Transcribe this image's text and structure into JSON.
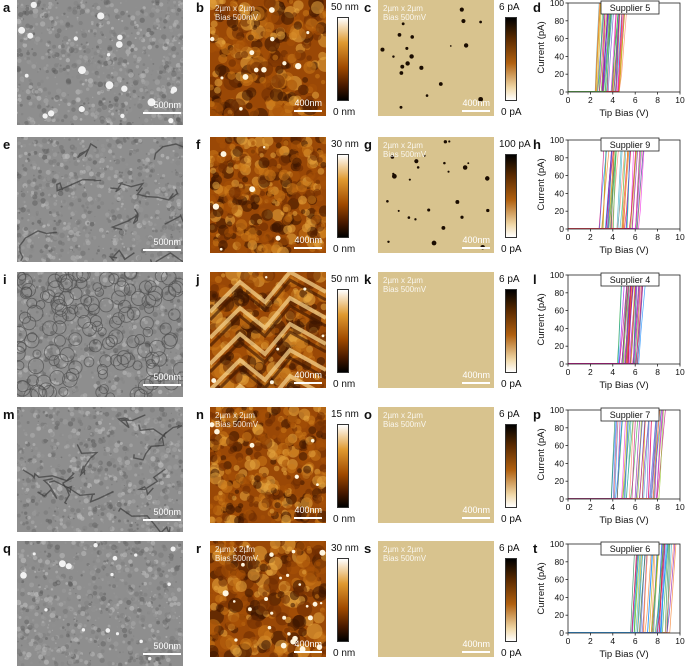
{
  "overlay": {
    "size": "2µm x 2µm",
    "bias": "Bias 500mV"
  },
  "scale": {
    "sem": "500nm",
    "afm": "400nm"
  },
  "rows": [
    {
      "labels": [
        "a",
        "b",
        "c",
        "d"
      ],
      "height_max": "50 nm",
      "height_min": "0 nm",
      "current_max": "6 pA",
      "current_min": "0 pA",
      "supplier": "Supplier 5",
      "sem_style": "grainy",
      "afm_style": "smooth",
      "current_style": "spots",
      "curve_range": [
        2.4,
        4.6
      ]
    },
    {
      "labels": [
        "e",
        "f",
        "g",
        "h"
      ],
      "height_max": "30 nm",
      "height_min": "0 nm",
      "current_max": "100 pA",
      "current_min": "0 pA",
      "supplier": "Supplier 9",
      "sem_style": "cracks",
      "afm_style": "grains",
      "current_style": "spots",
      "curve_range": [
        2.6,
        6.4
      ]
    },
    {
      "labels": [
        "i",
        "j",
        "k",
        "l"
      ],
      "height_max": "50 nm",
      "height_min": "0 nm",
      "current_max": "6 pA",
      "current_min": "0 pA",
      "supplier": "Supplier 4",
      "sem_style": "cells",
      "afm_style": "steps",
      "current_style": "flat",
      "curve_range": [
        4.4,
        6.4
      ]
    },
    {
      "labels": [
        "m",
        "n",
        "o",
        "p"
      ],
      "height_max": "15 nm",
      "height_min": "0 nm",
      "current_max": "6 pA",
      "current_min": "0 pA",
      "supplier": "Supplier 7",
      "sem_style": "cracks",
      "afm_style": "grains",
      "current_style": "flat",
      "curve_range": [
        3.8,
        8.2
      ]
    },
    {
      "labels": [
        "q",
        "r",
        "s",
        "t"
      ],
      "height_max": "30 nm",
      "height_min": "0 nm",
      "current_max": "6 pA",
      "current_min": "0 pA",
      "supplier": "Supplier 6",
      "sem_style": "particles",
      "afm_style": "dots",
      "current_style": "flat",
      "curve_range": [
        5.4,
        9.2
      ]
    }
  ],
  "chart_data": {
    "type": "line",
    "xlabel": "Tip Bias (V)",
    "ylabel": "Current (pA)",
    "xlim": [
      0,
      10
    ],
    "ylim": [
      0,
      100
    ],
    "xticks": [
      "0",
      "2",
      "4",
      "6",
      "8",
      "10"
    ],
    "yticks": [
      "0",
      "20",
      "40",
      "60",
      "80",
      "100"
    ],
    "legend_position": "top-right",
    "series": [
      {
        "name": "Supplier 5",
        "onset_range_V": [
          2.4,
          4.6
        ]
      },
      {
        "name": "Supplier 9",
        "onset_range_V": [
          2.6,
          6.4
        ]
      },
      {
        "name": "Supplier 4",
        "onset_range_V": [
          4.4,
          6.4
        ]
      },
      {
        "name": "Supplier 7",
        "onset_range_V": [
          3.8,
          8.2
        ]
      },
      {
        "name": "Supplier 6",
        "onset_range_V": [
          5.4,
          9.2
        ]
      }
    ]
  },
  "colors": {
    "curves": [
      "#e6194b",
      "#3cb44b",
      "#4363d8",
      "#f58231",
      "#911eb4",
      "#46b0c8",
      "#f032e6",
      "#9acd32",
      "#ff8c69",
      "#2e8b57",
      "#6a5acd",
      "#d2a000",
      "#1e90ff",
      "#c71585"
    ],
    "current_bg": "#d8c38e",
    "afm_gradient": [
      "#000000",
      "#4a1a00",
      "#a04a00",
      "#e09a30",
      "#ffffff"
    ]
  }
}
